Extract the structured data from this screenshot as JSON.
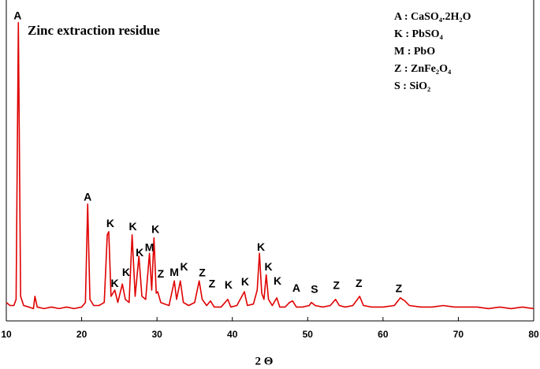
{
  "chart_data": {
    "type": "line",
    "title": "Zinc extraction residue",
    "x_label": "2 Θ",
    "legend_items": [
      "A : CaSO₄.2H₂O",
      "K : PbSO₄",
      "M : PbO",
      "Z : ZnFe₂O₄",
      "S : SiO₂"
    ],
    "color": "#e00000",
    "xlim": [
      10,
      80
    ],
    "xticks": [
      10,
      20,
      30,
      40,
      50,
      60,
      70,
      80
    ],
    "ylim": [
      0,
      100
    ],
    "x": [
      10,
      10.5,
      11,
      11.3,
      11.6,
      11.9,
      12.3,
      13,
      13.6,
      13.8,
      14.1,
      15,
      16,
      17,
      18,
      19,
      20,
      20.5,
      20.8,
      21.1,
      21.6,
      22.3,
      23,
      23.4,
      23.6,
      23.9,
      24.4,
      24.8,
      25.4,
      25.8,
      26.3,
      26.7,
      27.1,
      27.6,
      28,
      28.5,
      29,
      29.3,
      29.6,
      29.9,
      30.1,
      30.5,
      31,
      31.6,
      32.3,
      32.6,
      33.1,
      33.5,
      34.2,
      35,
      35.6,
      36,
      36.6,
      37.1,
      37.6,
      38.5,
      39.4,
      39.8,
      40.6,
      41.6,
      42,
      42.8,
      43.3,
      43.6,
      43.9,
      44.2,
      44.5,
      44.8,
      45.3,
      45.9,
      46.3,
      47,
      47.6,
      48,
      48.5,
      49.3,
      50.2,
      50.5,
      51,
      52,
      53,
      53.7,
      54.2,
      55,
      56,
      56.9,
      57.4,
      58.5,
      60,
      61.5,
      62.3,
      62.9,
      63.5,
      65,
      66.5,
      68,
      69.5,
      71,
      72.5,
      74,
      75.5,
      77,
      78.5,
      80
    ],
    "values": [
      6,
      5,
      5,
      7,
      97,
      8,
      5,
      4.5,
      4,
      8,
      4.5,
      4,
      4.5,
      4,
      4.5,
      4,
      4.5,
      6,
      38,
      7,
      5,
      5,
      6,
      28,
      29,
      8,
      10,
      6,
      12,
      7,
      6,
      28,
      8,
      21,
      8,
      7,
      22,
      10,
      27,
      9,
      9.5,
      6,
      5.5,
      5,
      13,
      7,
      13,
      6,
      5,
      6,
      13,
      7,
      5,
      6.5,
      4.5,
      4.5,
      7,
      4.5,
      5,
      9.5,
      5,
      5.5,
      10,
      22,
      9,
      7,
      15,
      7,
      5,
      7.5,
      4.5,
      4.5,
      6,
      6.5,
      4.5,
      4.5,
      5,
      6,
      5,
      4.5,
      5,
      7,
      5,
      4.5,
      5,
      8,
      5,
      4.5,
      4.5,
      5,
      7.5,
      6.5,
      5,
      4.5,
      4.5,
      5,
      4.5,
      4.5,
      4.5,
      4,
      4.5,
      4,
      4.5,
      4
    ],
    "annotations": [
      {
        "text": "A",
        "x": 11.5,
        "y": 99
      },
      {
        "text": "A",
        "x": 20.8,
        "y": 40
      },
      {
        "text": "K",
        "x": 23.8,
        "y": 31.5
      },
      {
        "text": "K",
        "x": 24.4,
        "y": 12
      },
      {
        "text": "K",
        "x": 25.9,
        "y": 15.6
      },
      {
        "text": "K",
        "x": 26.8,
        "y": 30.5
      },
      {
        "text": "K",
        "x": 27.7,
        "y": 22
      },
      {
        "text": "M",
        "x": 29,
        "y": 23.6
      },
      {
        "text": "K",
        "x": 29.8,
        "y": 29.5
      },
      {
        "text": "Z",
        "x": 30.5,
        "y": 15
      },
      {
        "text": "M",
        "x": 32.3,
        "y": 15.6
      },
      {
        "text": "K",
        "x": 33.6,
        "y": 17.4
      },
      {
        "text": "Z",
        "x": 36,
        "y": 15.4
      },
      {
        "text": "Z",
        "x": 37.3,
        "y": 11.8
      },
      {
        "text": "K",
        "x": 39.5,
        "y": 11.5
      },
      {
        "text": "K",
        "x": 41.7,
        "y": 12.5
      },
      {
        "text": "K",
        "x": 43.8,
        "y": 23.8
      },
      {
        "text": "K",
        "x": 44.8,
        "y": 17.4
      },
      {
        "text": "K",
        "x": 46,
        "y": 12.8
      },
      {
        "text": "A",
        "x": 48.5,
        "y": 10.5
      },
      {
        "text": "S",
        "x": 50.9,
        "y": 10
      },
      {
        "text": "Z",
        "x": 53.8,
        "y": 11.3
      },
      {
        "text": "Z",
        "x": 56.8,
        "y": 12
      },
      {
        "text": "Z",
        "x": 62.1,
        "y": 10.3
      }
    ]
  }
}
